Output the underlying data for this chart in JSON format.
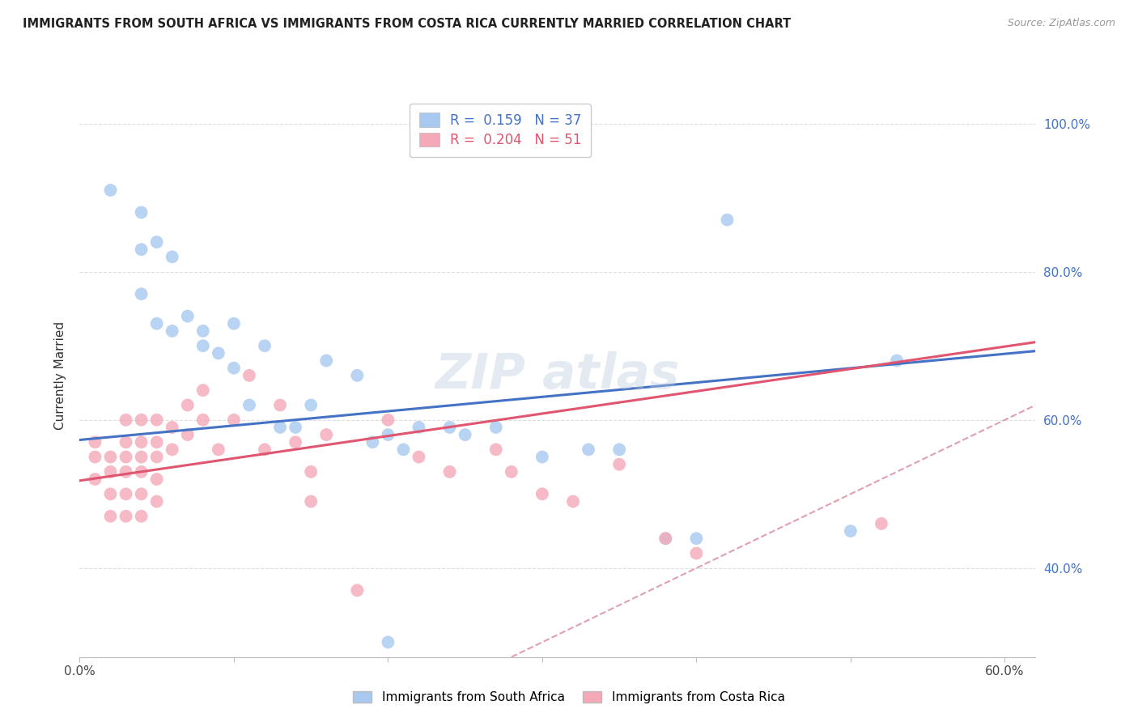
{
  "title": "IMMIGRANTS FROM SOUTH AFRICA VS IMMIGRANTS FROM COSTA RICA CURRENTLY MARRIED CORRELATION CHART",
  "source": "Source: ZipAtlas.com",
  "ylabel": "Currently Married",
  "xlim": [
    0.0,
    0.62
  ],
  "ylim": [
    0.28,
    1.04
  ],
  "xticks": [
    0.0,
    0.1,
    0.2,
    0.3,
    0.4,
    0.5,
    0.6
  ],
  "xtick_labels": [
    "0.0%",
    "",
    "",
    "",
    "",
    "",
    "60.0%"
  ],
  "ytick_labels_right": [
    "40.0%",
    "60.0%",
    "80.0%",
    "100.0%"
  ],
  "yticks": [
    0.4,
    0.6,
    0.8,
    1.0
  ],
  "r_south_africa": 0.159,
  "n_south_africa": 37,
  "r_costa_rica": 0.204,
  "n_costa_rica": 51,
  "color_south_africa": "#A8C8F0",
  "color_costa_rica": "#F4A8B8",
  "line_color_south_africa": "#4472C4",
  "line_color_costa_rica": "#E05570",
  "diagonal_color": "#E0A0B0",
  "background_color": "#FFFFFF",
  "grid_color": "#DDDDDD",
  "watermark": "ZIP atlas",
  "sa_line_x0": 0.0,
  "sa_line_y0": 0.573,
  "sa_line_x1": 0.62,
  "sa_line_y1": 0.693,
  "cr_line_x0": 0.0,
  "cr_line_y0": 0.518,
  "cr_line_x1": 0.62,
  "cr_line_y1": 0.705,
  "south_africa_x": [
    0.02,
    0.04,
    0.04,
    0.04,
    0.05,
    0.05,
    0.06,
    0.06,
    0.07,
    0.08,
    0.08,
    0.09,
    0.1,
    0.1,
    0.11,
    0.12,
    0.13,
    0.14,
    0.15,
    0.16,
    0.18,
    0.19,
    0.2,
    0.21,
    0.22,
    0.24,
    0.25,
    0.27,
    0.3,
    0.33,
    0.35,
    0.38,
    0.4,
    0.42,
    0.5,
    0.53,
    0.2
  ],
  "south_africa_y": [
    0.91,
    0.88,
    0.77,
    0.83,
    0.84,
    0.73,
    0.82,
    0.72,
    0.74,
    0.72,
    0.7,
    0.69,
    0.67,
    0.73,
    0.62,
    0.7,
    0.59,
    0.59,
    0.62,
    0.68,
    0.66,
    0.57,
    0.58,
    0.56,
    0.59,
    0.59,
    0.58,
    0.59,
    0.55,
    0.56,
    0.56,
    0.44,
    0.44,
    0.87,
    0.45,
    0.68,
    0.3
  ],
  "costa_rica_x": [
    0.01,
    0.01,
    0.01,
    0.02,
    0.02,
    0.02,
    0.02,
    0.03,
    0.03,
    0.03,
    0.03,
    0.03,
    0.03,
    0.04,
    0.04,
    0.04,
    0.04,
    0.04,
    0.04,
    0.05,
    0.05,
    0.05,
    0.05,
    0.05,
    0.06,
    0.06,
    0.07,
    0.07,
    0.08,
    0.08,
    0.09,
    0.1,
    0.11,
    0.12,
    0.13,
    0.14,
    0.15,
    0.15,
    0.16,
    0.18,
    0.2,
    0.22,
    0.24,
    0.27,
    0.28,
    0.3,
    0.32,
    0.35,
    0.38,
    0.4,
    0.52
  ],
  "costa_rica_y": [
    0.57,
    0.55,
    0.52,
    0.55,
    0.53,
    0.5,
    0.47,
    0.6,
    0.57,
    0.55,
    0.53,
    0.5,
    0.47,
    0.6,
    0.57,
    0.55,
    0.53,
    0.5,
    0.47,
    0.6,
    0.57,
    0.55,
    0.52,
    0.49,
    0.59,
    0.56,
    0.62,
    0.58,
    0.64,
    0.6,
    0.56,
    0.6,
    0.66,
    0.56,
    0.62,
    0.57,
    0.53,
    0.49,
    0.58,
    0.37,
    0.6,
    0.55,
    0.53,
    0.56,
    0.53,
    0.5,
    0.49,
    0.54,
    0.44,
    0.42,
    0.46
  ]
}
